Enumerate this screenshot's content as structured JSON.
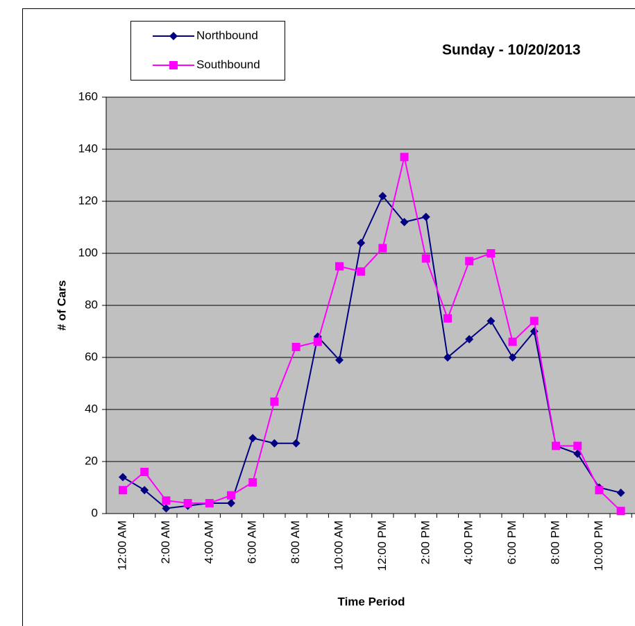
{
  "chart_data": {
    "type": "line",
    "title": "Sunday - 10/20/2013",
    "x_label": "Time Period",
    "y_label": "# of Cars",
    "categories": [
      "12:00 AM",
      null,
      "2:00 AM",
      null,
      "4:00 AM",
      null,
      "6:00 AM",
      null,
      "8:00 AM",
      null,
      "10:00 AM",
      null,
      "12:00 PM",
      null,
      "2:00 PM",
      null,
      "4:00 PM",
      null,
      "6:00 PM",
      null,
      "8:00 PM",
      null,
      "10:00 PM",
      null
    ],
    "series": [
      {
        "name": "Northbound",
        "color": "#000080",
        "marker": "diamond",
        "values": [
          14,
          9,
          2,
          3,
          4,
          4,
          29,
          27,
          27,
          68,
          59,
          104,
          122,
          112,
          114,
          60,
          67,
          74,
          60,
          70,
          26,
          23,
          10,
          8
        ]
      },
      {
        "name": "Southbound",
        "color": "#ff00ff",
        "marker": "square",
        "values": [
          9,
          16,
          5,
          4,
          4,
          7,
          12,
          43,
          64,
          66,
          95,
          93,
          102,
          137,
          98,
          75,
          97,
          100,
          66,
          74,
          26,
          26,
          9,
          1
        ]
      }
    ],
    "ylim": [
      0,
      160
    ],
    "yticks": [
      0,
      20,
      40,
      60,
      80,
      100,
      120,
      140,
      160
    ],
    "grid": true,
    "legend": "top-left"
  }
}
